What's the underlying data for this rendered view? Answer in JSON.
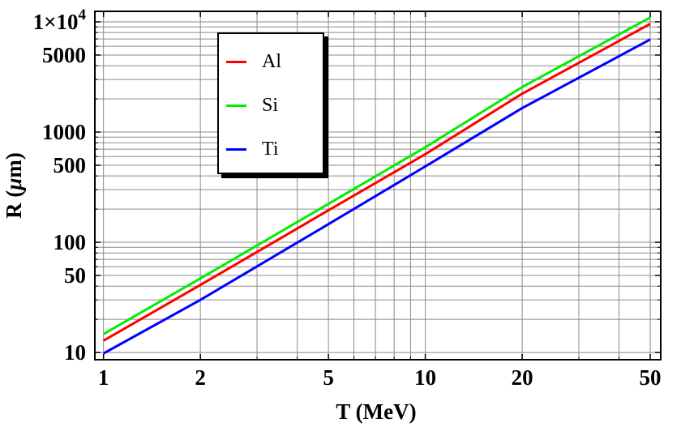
{
  "chart_data": {
    "type": "line",
    "title": "",
    "xlabel": "T (MeV)",
    "ylabel": "R (μm)",
    "ylabel_parts": {
      "prefix": "R (",
      "mu": "μ",
      "suffix": "m)"
    },
    "x_scale": "log",
    "y_scale": "log",
    "xlim": [
      0.94,
      53.9
    ],
    "ylim": [
      8.6,
      12460
    ],
    "grid": {
      "on": true,
      "color": "#8a8a8a",
      "x_values": [
        1,
        2,
        3,
        4,
        5,
        6,
        7,
        8,
        9,
        10,
        20,
        30,
        40,
        50
      ],
      "y_values": [
        10,
        20,
        30,
        40,
        50,
        60,
        70,
        80,
        90,
        100,
        200,
        300,
        400,
        500,
        600,
        700,
        800,
        900,
        1000,
        2000,
        3000,
        4000,
        5000,
        6000,
        7000,
        8000,
        9000,
        10000
      ]
    },
    "x_ticks": {
      "major": [
        1,
        2,
        5,
        10,
        20,
        50
      ],
      "labels": [
        "1",
        "2",
        "5",
        "10",
        "20",
        "50"
      ],
      "minor": [
        3,
        4,
        6,
        7,
        8,
        9,
        30,
        40
      ]
    },
    "y_ticks": {
      "major": [
        10,
        50,
        100,
        500,
        1000,
        5000,
        10000
      ],
      "labels": [
        "10",
        "50",
        "100",
        "500",
        "1000",
        "5000",
        "1×10^4"
      ],
      "minor": [
        20,
        30,
        40,
        60,
        70,
        80,
        90,
        200,
        300,
        400,
        600,
        700,
        800,
        900,
        2000,
        3000,
        4000,
        6000,
        7000,
        8000,
        9000
      ]
    },
    "x": [
      1,
      2,
      5,
      10,
      20,
      50
    ],
    "series": [
      {
        "name": "Al",
        "color": "#ff0000",
        "values": [
          12.8,
          41,
          195,
          630,
          2230,
          9590
        ]
      },
      {
        "name": "Si",
        "color": "#00ee00",
        "values": [
          14.7,
          47,
          223,
          728,
          2560,
          10970
        ]
      },
      {
        "name": "Ti",
        "color": "#0000ff",
        "values": [
          9.8,
          30,
          146,
          488,
          1650,
          6920
        ]
      }
    ],
    "legend": {
      "position": "upper-left-inside",
      "items": [
        "Al",
        "Si",
        "Ti"
      ]
    },
    "frame_color": "#000000"
  }
}
